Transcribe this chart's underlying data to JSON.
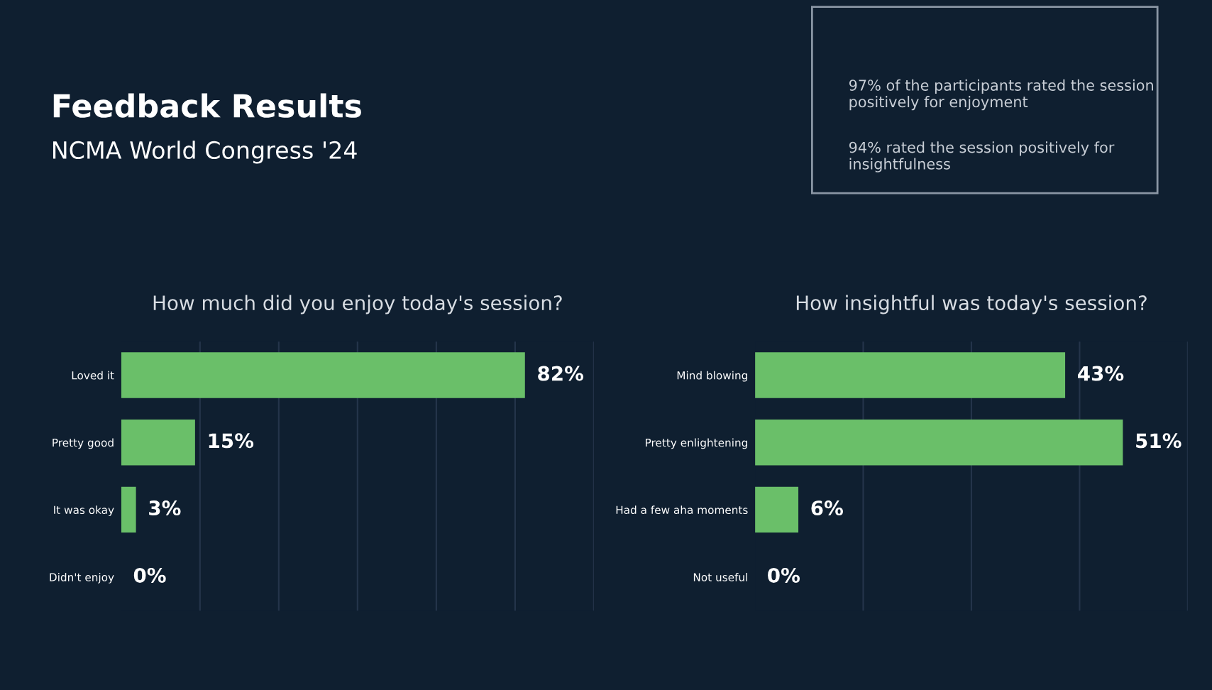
{
  "chart_data": [
    {
      "type": "bar",
      "orientation": "horizontal",
      "title": "How much did you enjoy today's session?",
      "categories": [
        "Loved it",
        "Pretty good",
        "It was okay",
        "Didn't enjoy"
      ],
      "values": [
        82,
        15,
        3,
        0
      ],
      "value_labels": [
        "82%",
        "15%",
        "3%",
        "0%"
      ],
      "color": "#6abf69",
      "xticks": [
        {
          "value": 16,
          "label": null
        },
        {
          "value": 32,
          "label": null
        },
        {
          "value": 48,
          "label": null
        },
        {
          "value": 64,
          "label": null
        },
        {
          "value": 80,
          "label": null
        },
        {
          "value": 96,
          "label": null
        }
      ],
      "grid": "x",
      "tick_labels": "y",
      "annotations": [
        "Feedback Results",
        "NCMA World Congress '24"
      ]
    },
    {
      "type": "bar",
      "orientation": "horizontal",
      "title": "How insightful was today's session?",
      "categories": [
        "Mind blowing",
        "Pretty enlightening",
        "Had a few aha moments",
        "Not useful"
      ],
      "values": [
        43,
        51,
        6,
        0
      ],
      "value_labels": [
        "43%",
        "51%",
        "6%",
        "0%"
      ],
      "color": "#6abf69",
      "xticks": [
        {
          "value": 15,
          "label": null
        },
        {
          "value": 30,
          "label": null
        },
        {
          "value": 45,
          "label": null
        },
        {
          "value": 60,
          "label": null
        }
      ],
      "grid": "x",
      "tick_labels": "y",
      "annotations": [
        "97% of the participants rated the session positively for enjoyment",
        "94% rated the session positively for insightfulness"
      ]
    }
  ]
}
